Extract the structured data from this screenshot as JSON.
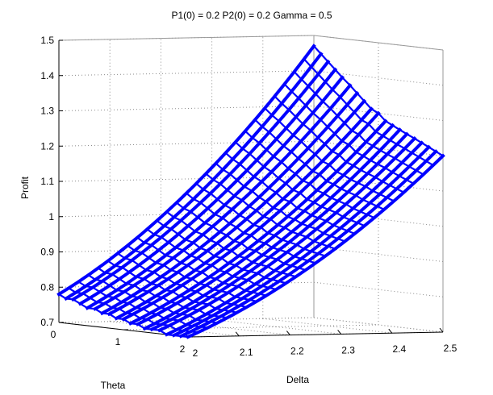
{
  "chart_data": {
    "type": "surface-3d",
    "title": "P1(0) = 0.2 P2(0) = 0.2 Gamma = 0.5",
    "xlabel": "Delta",
    "ylabel": "Theta",
    "zlabel": "Profit",
    "xlim": [
      2,
      2.5
    ],
    "ylim": [
      0,
      2
    ],
    "zlim": [
      0.7,
      1.5
    ],
    "xticks": [
      "2",
      "2.1",
      "2.2",
      "2.3",
      "2.4",
      "2.5"
    ],
    "yticks": [
      "0",
      "1",
      "2"
    ],
    "zticks": [
      "0.7",
      "0.8",
      "0.9",
      "1",
      "1.1",
      "1.2",
      "1.3",
      "1.4",
      "1.5"
    ],
    "grid": true,
    "series_color": "#0000ff",
    "surface_rows": [
      {
        "theta": 0.0,
        "profit_at_delta_min": 0.78,
        "profit_at_delta_max": 1.47
      },
      {
        "theta": 0.11,
        "profit_at_delta_min": 0.77,
        "profit_at_delta_max": 1.45
      },
      {
        "theta": 0.22,
        "profit_at_delta_min": 0.77,
        "profit_at_delta_max": 1.43
      },
      {
        "theta": 0.33,
        "profit_at_delta_min": 0.76,
        "profit_at_delta_max": 1.41
      },
      {
        "theta": 0.44,
        "profit_at_delta_min": 0.75,
        "profit_at_delta_max": 1.39
      },
      {
        "theta": 0.56,
        "profit_at_delta_min": 0.75,
        "profit_at_delta_max": 1.37
      },
      {
        "theta": 0.67,
        "profit_at_delta_min": 0.74,
        "profit_at_delta_max": 1.35
      },
      {
        "theta": 0.78,
        "profit_at_delta_min": 0.74,
        "profit_at_delta_max": 1.33
      },
      {
        "theta": 0.89,
        "profit_at_delta_min": 0.73,
        "profit_at_delta_max": 1.31
      },
      {
        "theta": 1.0,
        "profit_at_delta_min": 0.73,
        "profit_at_delta_max": 1.3
      },
      {
        "theta": 1.11,
        "profit_at_delta_min": 0.72,
        "profit_at_delta_max": 1.28
      },
      {
        "theta": 1.22,
        "profit_at_delta_min": 0.72,
        "profit_at_delta_max": 1.27
      },
      {
        "theta": 1.33,
        "profit_at_delta_min": 0.71,
        "profit_at_delta_max": 1.26
      },
      {
        "theta": 1.44,
        "profit_at_delta_min": 0.71,
        "profit_at_delta_max": 1.25
      },
      {
        "theta": 1.56,
        "profit_at_delta_min": 0.71,
        "profit_at_delta_max": 1.24
      },
      {
        "theta": 1.67,
        "profit_at_delta_min": 0.7,
        "profit_at_delta_max": 1.23
      },
      {
        "theta": 1.78,
        "profit_at_delta_min": 0.7,
        "profit_at_delta_max": 1.22
      },
      {
        "theta": 1.89,
        "profit_at_delta_min": 0.7,
        "profit_at_delta_max": 1.21
      },
      {
        "theta": 2.0,
        "profit_at_delta_min": 0.7,
        "profit_at_delta_max": 1.2
      }
    ]
  }
}
